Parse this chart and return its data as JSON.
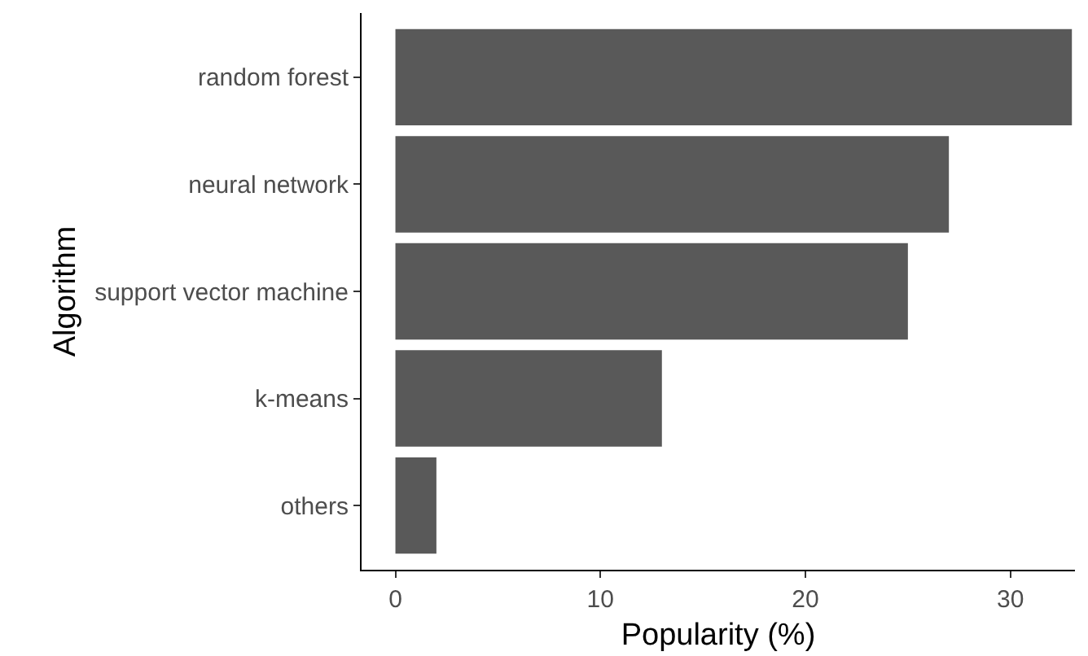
{
  "chart_data": {
    "type": "bar",
    "orientation": "horizontal",
    "xlabel": "Popularity (%)",
    "ylabel": "Algorithm",
    "categories": [
      "random forest",
      "neural network",
      "support vector machine",
      "k-means",
      "others"
    ],
    "values": [
      33,
      27,
      25,
      13,
      2
    ],
    "color": "#595959",
    "xlim": [
      -1.65,
      33.15
    ],
    "xticks": [
      0,
      10,
      20,
      30
    ],
    "grid": false
  }
}
